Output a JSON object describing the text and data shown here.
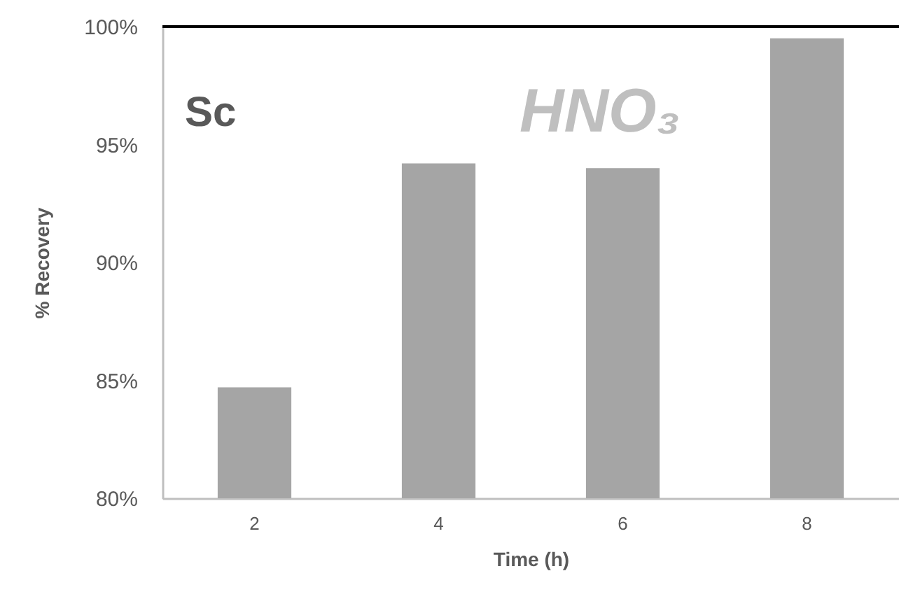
{
  "chart_data": {
    "type": "bar",
    "xlabel": "Time (h)",
    "ylabel": "% Recovery",
    "categories": [
      "2",
      "4",
      "6",
      "8"
    ],
    "values": [
      84.7,
      94.2,
      94.0,
      99.5
    ],
    "color": "#a5a5a5",
    "ylim": [
      80,
      100
    ],
    "yticks": [
      {
        "value": 80,
        "label": "80%"
      },
      {
        "value": 85,
        "label": "85%"
      },
      {
        "value": 90,
        "label": "90%"
      },
      {
        "value": 95,
        "label": "95%"
      },
      {
        "value": 100,
        "label": "100%"
      }
    ],
    "annotations": [
      "Sc",
      "HNO₃"
    ],
    "grid": false
  }
}
